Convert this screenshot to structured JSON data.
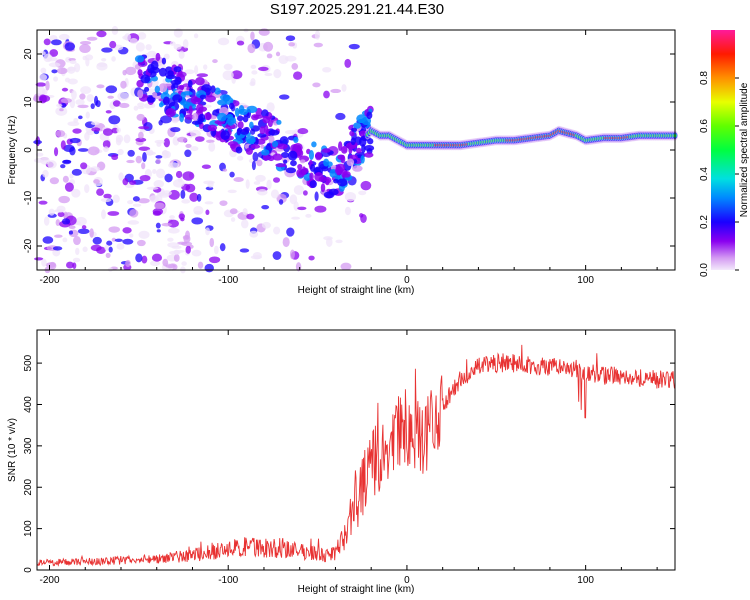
{
  "title": "S197.2025.291.21.44.E30",
  "chart_data": [
    {
      "type": "heatmap",
      "name": "spectrogram",
      "xlabel": "Height of straight line (km)",
      "ylabel": "Frequency (Hz)",
      "xlim": [
        -207,
        150
      ],
      "ylim": [
        -25,
        25
      ],
      "xticks": [
        -200,
        -100,
        0,
        100
      ],
      "yticks": [
        -20,
        -10,
        0,
        10,
        20
      ],
      "colorbar": {
        "label": "Normalized spectral amplitude",
        "range": [
          0,
          1
        ],
        "ticks": [
          "0.0",
          "0.2",
          "0.4",
          "0.6",
          "0.8"
        ]
      },
      "ridge": {
        "x": [
          -200,
          -140,
          -130,
          -120,
          -110,
          -100,
          -90,
          -80,
          -70,
          -60,
          -50,
          -45,
          -40,
          -35,
          -30,
          -25,
          -20,
          -15,
          -10,
          -5,
          0,
          10,
          20,
          30,
          40,
          50,
          60,
          70,
          80,
          85,
          90,
          95,
          100,
          110,
          120,
          130,
          150
        ],
        "y": [
          14,
          15,
          12,
          11,
          9,
          6,
          4,
          3,
          1,
          -2,
          -4,
          -5,
          -6,
          -2,
          0,
          2,
          4,
          3,
          3,
          2,
          1,
          1,
          1,
          1,
          1.5,
          2,
          2,
          2.5,
          3,
          4,
          3.5,
          3,
          2,
          2.5,
          2.5,
          3,
          3
        ]
      }
    },
    {
      "type": "line",
      "name": "snr",
      "color": "#e83232",
      "xlabel": "Height of straight line (km)",
      "ylabel": "SNR (10 * v/v)",
      "xlim": [
        -207,
        150
      ],
      "ylim": [
        0,
        580
      ],
      "xticks": [
        -200,
        -100,
        0,
        100
      ],
      "yticks": [
        0,
        100,
        200,
        300,
        400,
        500
      ],
      "envelope": {
        "x": [
          -207,
          -180,
          -150,
          -120,
          -110,
          -100,
          -90,
          -80,
          -70,
          -60,
          -50,
          -45,
          -40,
          -35,
          -30,
          -25,
          -20,
          -15,
          -10,
          -5,
          0,
          5,
          10,
          15,
          20,
          25,
          30,
          40,
          50,
          60,
          70,
          80,
          90,
          100,
          110,
          120,
          130,
          140,
          150
        ],
        "y": [
          18,
          20,
          25,
          35,
          45,
          50,
          55,
          55,
          50,
          45,
          40,
          35,
          40,
          80,
          150,
          200,
          250,
          270,
          300,
          330,
          330,
          320,
          320,
          360,
          390,
          430,
          460,
          490,
          500,
          500,
          495,
          490,
          490,
          480,
          470,
          470,
          465,
          460,
          460
        ]
      }
    }
  ]
}
